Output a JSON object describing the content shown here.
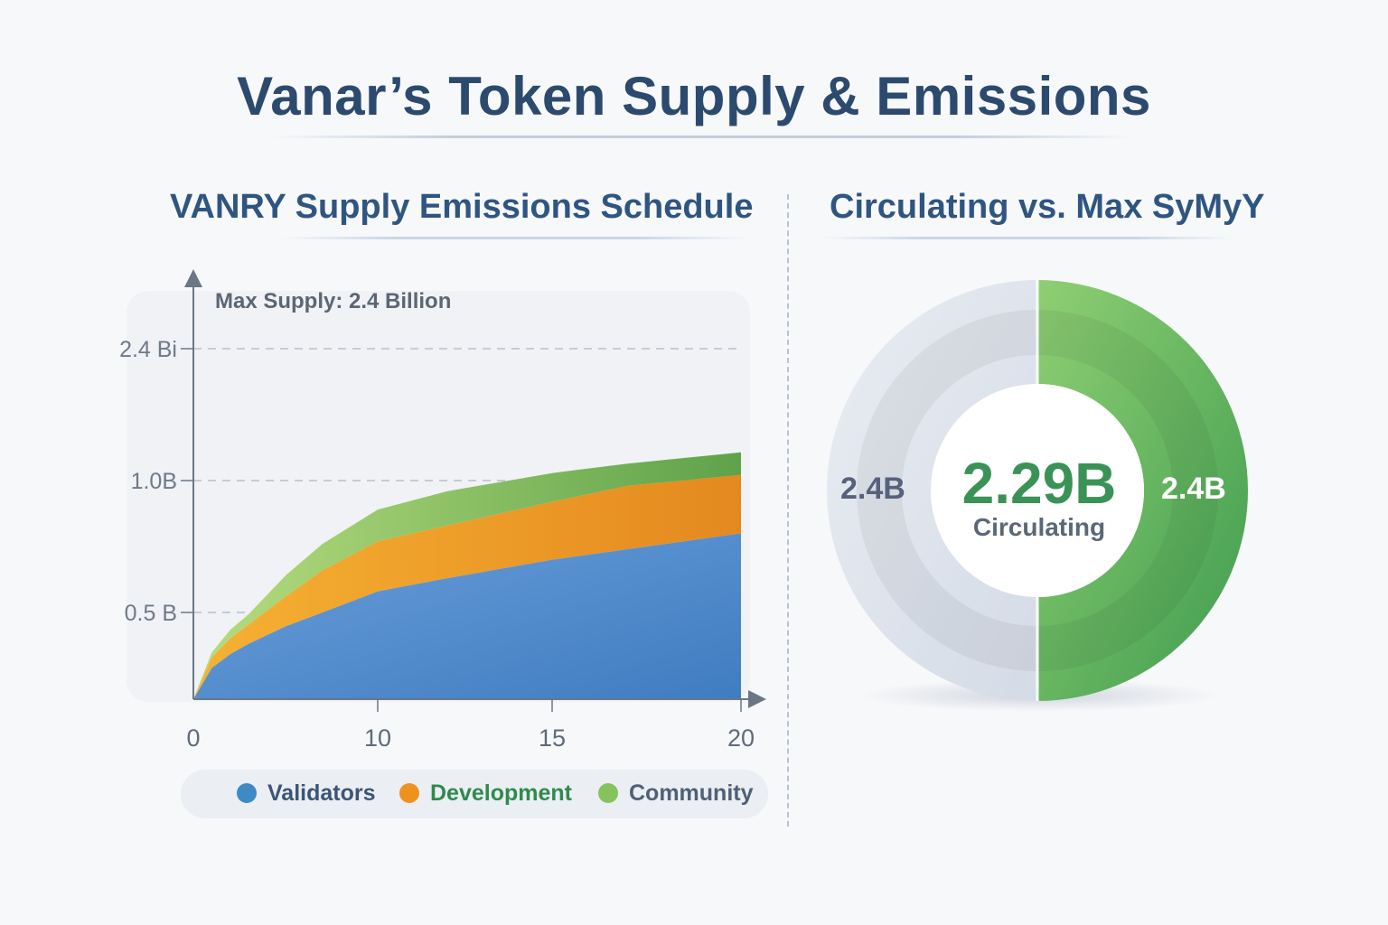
{
  "header": {
    "title": "Vanar’s Token Supply & Emissions"
  },
  "left_panel": {
    "title": "VANRY Supply Emissions Schedule"
  },
  "right_panel": {
    "title": "Circulating vs. Max SyMyY"
  },
  "colors": {
    "validators": "#4a86c8",
    "development": "#f0a02a",
    "community": "#8cc86a",
    "circulating": "#4caf5e",
    "remaining": "#dfe5ee"
  },
  "chart_data": [
    {
      "type": "area",
      "stacked": true,
      "title": "VANRY Supply Emissions Schedule",
      "annotation": "Max Supply: 2.4 Billion",
      "y_ticks": [
        {
          "value": 0.5,
          "label": "0.5 B"
        },
        {
          "value": 1.0,
          "label": "1.0B"
        },
        {
          "value": 2.4,
          "label": "2.4 Bi"
        }
      ],
      "x_ticks": [
        {
          "value": 0,
          "label": "0"
        },
        {
          "value": 10,
          "label": "10"
        },
        {
          "value": 15,
          "label": "15"
        },
        {
          "value": 20,
          "label": "20"
        }
      ],
      "x": [
        0,
        1,
        2,
        3,
        5,
        7,
        10,
        12,
        15,
        17,
        20
      ],
      "series": [
        {
          "name": "Validators",
          "values": [
            0,
            0.18,
            0.26,
            0.32,
            0.42,
            0.5,
            0.58,
            0.63,
            0.7,
            0.74,
            0.8
          ]
        },
        {
          "name": "Development",
          "values": [
            0,
            0.06,
            0.09,
            0.11,
            0.14,
            0.16,
            0.19,
            0.2,
            0.22,
            0.24,
            0.26
          ]
        },
        {
          "name": "Community",
          "values": [
            0,
            0.03,
            0.05,
            0.06,
            0.08,
            0.1,
            0.12,
            0.13,
            0.16,
            0.2,
            0.24
          ]
        }
      ],
      "legend": [
        "Validators",
        "Development",
        "Community"
      ],
      "grid": "dashed horizontal at ticks",
      "legend_position": "bottom"
    },
    {
      "type": "pie",
      "title": "Circulating vs. Max SyMyY",
      "style": "donut",
      "center_value": "2.29B",
      "center_label": "Circulating",
      "left_label": "2.4B",
      "right_label": "2.4B",
      "slices": [
        {
          "label": "2.4B",
          "value": 50,
          "color": "#4caf5e"
        },
        {
          "label": "2.4B",
          "value": 50,
          "color": "#dfe5ee"
        }
      ]
    }
  ]
}
